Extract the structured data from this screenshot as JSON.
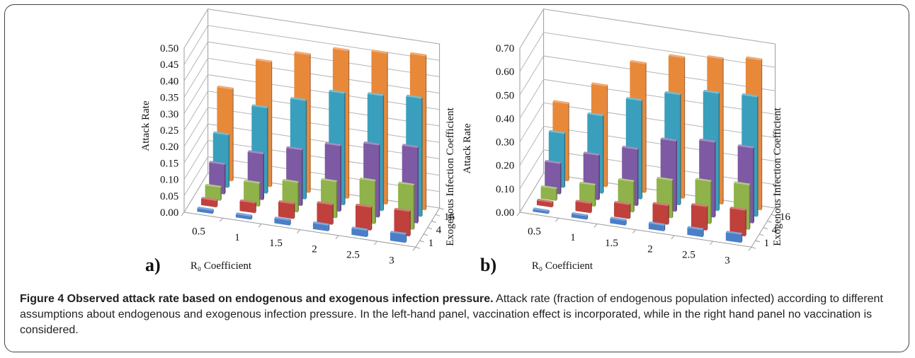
{
  "figure": {
    "caption_title": "Figure 4 Observed attack rate based on endogenous and exogenous infection pressure.",
    "caption_text": " Attack rate (fraction of endogenous population infected) according to different assumptions about endogenous and exogenous infection pressure. In the left-hand panel, vaccination effect is incorporated, while in the right hand panel no vaccination is considered."
  },
  "chart_data": [
    {
      "type": "bar3d",
      "panel_label": "a)",
      "xlabel": "R₀ Coefficient",
      "ylabel": "Attack Rate",
      "zlabel": "Exogenous Infection Coefficient",
      "categories": [
        "0.5",
        "1",
        "1.5",
        "2",
        "2.5",
        "3"
      ],
      "depth_tick_labels": [
        "1",
        "4",
        "16"
      ],
      "ylim": [
        0,
        0.5
      ],
      "yticks": [
        "0.00",
        "0.05",
        "0.10",
        "0.15",
        "0.20",
        "0.25",
        "0.30",
        "0.35",
        "0.40",
        "0.45",
        "0.50"
      ],
      "series": [
        {
          "color": "#4a7fc8",
          "values": [
            0.01,
            0.01,
            0.015,
            0.018,
            0.02,
            0.025
          ]
        },
        {
          "color": "#c0403c",
          "values": [
            0.02,
            0.03,
            0.045,
            0.06,
            0.07,
            0.075
          ]
        },
        {
          "color": "#8fb24a",
          "values": [
            0.04,
            0.07,
            0.09,
            0.11,
            0.13,
            0.135
          ]
        },
        {
          "color": "#7d5aa3",
          "values": [
            0.09,
            0.14,
            0.17,
            0.2,
            0.22,
            0.23
          ]
        },
        {
          "color": "#3a9fbc",
          "values": [
            0.16,
            0.26,
            0.3,
            0.34,
            0.35,
            0.36
          ]
        },
        {
          "color": "#e8893a",
          "values": [
            0.28,
            0.38,
            0.42,
            0.45,
            0.46,
            0.47
          ]
        }
      ]
    },
    {
      "type": "bar3d",
      "panel_label": "b)",
      "xlabel": "R₀ Coefficient",
      "ylabel": "Attack Rate",
      "zlabel": "Exogenous Infection Coefficient",
      "categories": [
        "0.5",
        "1",
        "1.5",
        "2",
        "2.5",
        "3"
      ],
      "depth_tick_labels": [
        "1",
        "4",
        "16"
      ],
      "ylim": [
        0,
        0.7
      ],
      "yticks": [
        "0.00",
        "0.10",
        "0.20",
        "0.30",
        "0.40",
        "0.50",
        "0.60",
        "0.70"
      ],
      "series": [
        {
          "color": "#4a7fc8",
          "values": [
            0.01,
            0.015,
            0.02,
            0.025,
            0.03,
            0.035
          ]
        },
        {
          "color": "#c0403c",
          "values": [
            0.02,
            0.04,
            0.06,
            0.08,
            0.1,
            0.11
          ]
        },
        {
          "color": "#8fb24a",
          "values": [
            0.05,
            0.09,
            0.13,
            0.16,
            0.18,
            0.19
          ]
        },
        {
          "color": "#7d5aa3",
          "values": [
            0.13,
            0.19,
            0.24,
            0.3,
            0.32,
            0.32
          ]
        },
        {
          "color": "#3a9fbc",
          "values": [
            0.23,
            0.33,
            0.42,
            0.47,
            0.5,
            0.51
          ]
        },
        {
          "color": "#e8893a",
          "values": [
            0.33,
            0.43,
            0.55,
            0.6,
            0.62,
            0.64
          ]
        }
      ]
    }
  ]
}
